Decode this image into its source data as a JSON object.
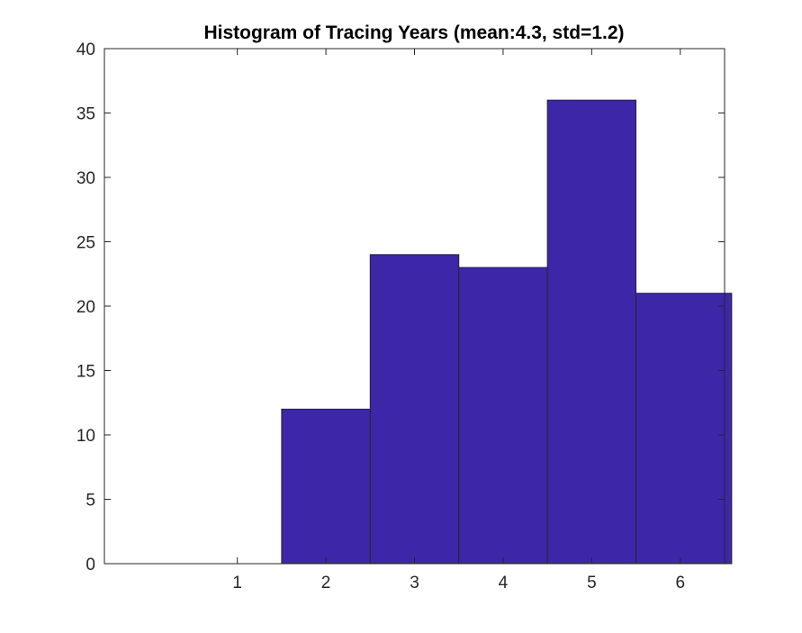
{
  "chart_data": {
    "type": "bar",
    "title": "Histogram of Tracing Years (mean:4.3, std=1.2)",
    "xlabel": "",
    "ylabel": "",
    "bins": [
      {
        "x_start": 0.5,
        "x_end": 1.5,
        "value": 0
      },
      {
        "x_start": 1.5,
        "x_end": 2.5,
        "value": 12
      },
      {
        "x_start": 2.5,
        "x_end": 3.5,
        "value": 24
      },
      {
        "x_start": 3.5,
        "x_end": 4.5,
        "value": 23
      },
      {
        "x_start": 4.5,
        "x_end": 5.5,
        "value": 36
      },
      {
        "x_start": 5.5,
        "x_end": 6.58,
        "value": 21
      }
    ],
    "xlim": [
      -0.5,
      6.5
    ],
    "ylim": [
      0,
      40
    ],
    "x_ticks": [
      "1",
      "2",
      "3",
      "4",
      "5",
      "6"
    ],
    "x_tick_values": [
      1,
      2,
      3,
      4,
      5,
      6
    ],
    "y_ticks": [
      "0",
      "5",
      "10",
      "15",
      "20",
      "25",
      "30",
      "35",
      "40"
    ],
    "y_tick_values": [
      0,
      5,
      10,
      15,
      20,
      25,
      30,
      35,
      40
    ],
    "bar_color": "#3d27a8",
    "edge_color": "#262626",
    "grid": false,
    "legend": "none"
  }
}
